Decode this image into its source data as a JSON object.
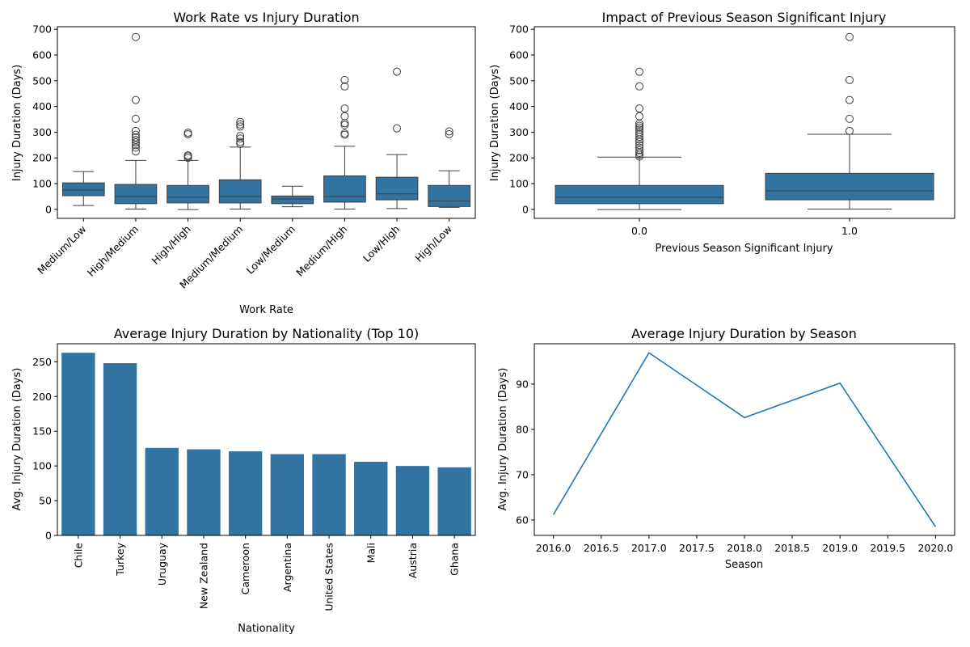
{
  "chart_data": [
    {
      "id": "workrate",
      "type": "box",
      "title": "Work Rate vs Injury Duration",
      "xlabel": "Work Rate",
      "ylabel": "Injury Duration (Days)",
      "ylim": [
        -35,
        710
      ],
      "yticks": [
        0,
        100,
        200,
        300,
        400,
        500,
        600,
        700
      ],
      "box_color": "#3274a1",
      "boxes": [
        {
          "label": "Medium/Low",
          "q1": 53,
          "median": 75,
          "q3": 103,
          "whisker_low": 15,
          "whisker_high": 147,
          "outliers": []
        },
        {
          "label": "High/Medium",
          "q1": 22,
          "median": 50,
          "q3": 97,
          "whisker_low": 1,
          "whisker_high": 190,
          "outliers": [
            225,
            240,
            250,
            260,
            270,
            280,
            290,
            305,
            352,
            425,
            670
          ]
        },
        {
          "label": "High/High",
          "q1": 25,
          "median": 47,
          "q3": 93,
          "whisker_low": -1,
          "whisker_high": 190,
          "outliers": [
            200,
            206,
            210,
            292,
            298
          ]
        },
        {
          "label": "Medium/Medium",
          "q1": 25,
          "median": 50,
          "q3": 115,
          "whisker_low": 1,
          "whisker_high": 242,
          "outliers": [
            255,
            262,
            275,
            285,
            322,
            330,
            340
          ]
        },
        {
          "label": "Low/Medium",
          "q1": 22,
          "median": 40,
          "q3": 52,
          "whisker_low": 10,
          "whisker_high": 90,
          "outliers": []
        },
        {
          "label": "Medium/High",
          "q1": 28,
          "median": 50,
          "q3": 130,
          "whisker_low": 1,
          "whisker_high": 245,
          "outliers": [
            290,
            295,
            328,
            335,
            362,
            392,
            478,
            503
          ]
        },
        {
          "label": "Low/High",
          "q1": 37,
          "median": 60,
          "q3": 125,
          "whisker_low": 3,
          "whisker_high": 213,
          "outliers": [
            315,
            535
          ]
        },
        {
          "label": "High/Low",
          "q1": 11,
          "median": 32,
          "q3": 93,
          "whisker_low": 8,
          "whisker_high": 150,
          "outliers": [
            292,
            303
          ]
        }
      ]
    },
    {
      "id": "prevseason",
      "type": "box",
      "title": "Impact of Previous Season Significant Injury",
      "xlabel": "Previous Season Significant Injury",
      "ylabel": "Injury Duration (Days)",
      "ylim": [
        -35,
        710
      ],
      "yticks": [
        0,
        100,
        200,
        300,
        400,
        500,
        600,
        700
      ],
      "box_color": "#3274a1",
      "boxes": [
        {
          "label": "0.0",
          "q1": 22,
          "median": 47,
          "q3": 93,
          "whisker_low": -1,
          "whisker_high": 203,
          "outliers": [
            205,
            212,
            220,
            230,
            240,
            250,
            262,
            272,
            282,
            292,
            300,
            310,
            318,
            325,
            333,
            362,
            392,
            478,
            535
          ]
        },
        {
          "label": "1.0",
          "q1": 37,
          "median": 72,
          "q3": 140,
          "whisker_low": 1,
          "whisker_high": 292,
          "outliers": [
            305,
            352,
            425,
            503,
            670
          ]
        }
      ]
    },
    {
      "id": "nationality",
      "type": "bar",
      "title": "Average Injury Duration by Nationality (Top 10)",
      "xlabel": "Nationality",
      "ylabel": "Avg. Injury Duration (Days)",
      "ylim": [
        0,
        276
      ],
      "yticks": [
        0,
        50,
        100,
        150,
        200,
        250
      ],
      "bar_color": "#3274a1",
      "categories": [
        "Chile",
        "Turkey",
        "Uruguay",
        "New Zealand",
        "Cameroon",
        "Argentina",
        "United States",
        "Mali",
        "Austria",
        "Ghana"
      ],
      "values": [
        263,
        248,
        126,
        124,
        121,
        117,
        117,
        106,
        100,
        98
      ]
    },
    {
      "id": "season",
      "type": "line",
      "title": "Average Injury Duration by Season",
      "xlabel": "Season",
      "ylabel": "Avg. Injury Duration (Days)",
      "xlim": [
        2015.8,
        2020.2
      ],
      "ylim": [
        56.6,
        98.9
      ],
      "xticks": [
        "2016.0",
        "2016.5",
        "2017.0",
        "2017.5",
        "2018.0",
        "2018.5",
        "2019.0",
        "2019.5",
        "2020.0"
      ],
      "yticks": [
        60,
        70,
        80,
        90
      ],
      "line_color": "#1f77b4",
      "x": [
        2016,
        2017,
        2018,
        2019,
        2020
      ],
      "y": [
        61.2,
        96.9,
        82.6,
        90.2,
        58.5
      ]
    }
  ]
}
